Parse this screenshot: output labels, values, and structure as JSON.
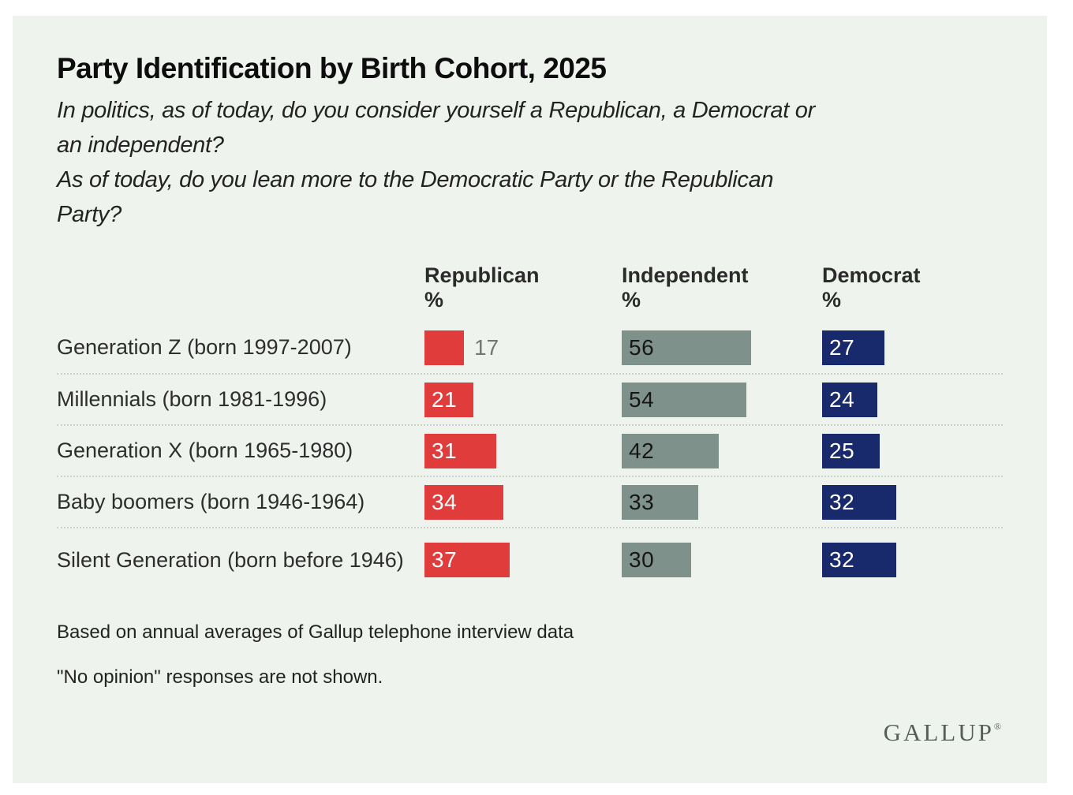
{
  "title": "Party Identification by Birth Cohort, 2025",
  "questions": [
    [
      "In politics, as of today, do you consider yourself a Republican, a Democrat or",
      "an independent?"
    ],
    [
      "As of today, do you lean more to the Democratic Party or the Republican",
      "Party?"
    ]
  ],
  "unit_label": "%",
  "footnotes": [
    "Based on annual averages of Gallup telephone interview data",
    "\"No opinion\" responses are not shown."
  ],
  "logo": {
    "text": "GALLUP",
    "registered_mark": "®"
  },
  "colors": {
    "page": "#ffffff",
    "card_background": "#eff3ed",
    "republican": "#e13c3c",
    "independent": "#7e928b",
    "democrat": "#192a6c",
    "bar_label_on_republican": "#ffffff",
    "bar_label_on_independent": "#161616",
    "bar_label_on_democrat": "#ffffff",
    "outside_label": "#757575",
    "separator": "#ccd3ca"
  },
  "chart_data": {
    "type": "bar",
    "orientation": "horizontal",
    "value_unit": "%",
    "title": "Party Identification by Birth Cohort, 2025",
    "categories": [
      "Generation Z (born 1997-2007)",
      "Millennials (born 1981-1996)",
      "Generation X (born 1965-1980)",
      "Baby boomers (born 1946-1964)",
      "Silent Generation (born before 1946)"
    ],
    "series": [
      {
        "name": "Republican",
        "values": [
          17,
          21,
          31,
          34,
          37
        ]
      },
      {
        "name": "Independent",
        "values": [
          56,
          54,
          42,
          33,
          30
        ]
      },
      {
        "name": "Democrat",
        "values": [
          27,
          24,
          25,
          32,
          32
        ]
      }
    ],
    "value_range": [
      0,
      60
    ],
    "grid": false,
    "legend_position": "column-headers",
    "data_labels": true
  }
}
